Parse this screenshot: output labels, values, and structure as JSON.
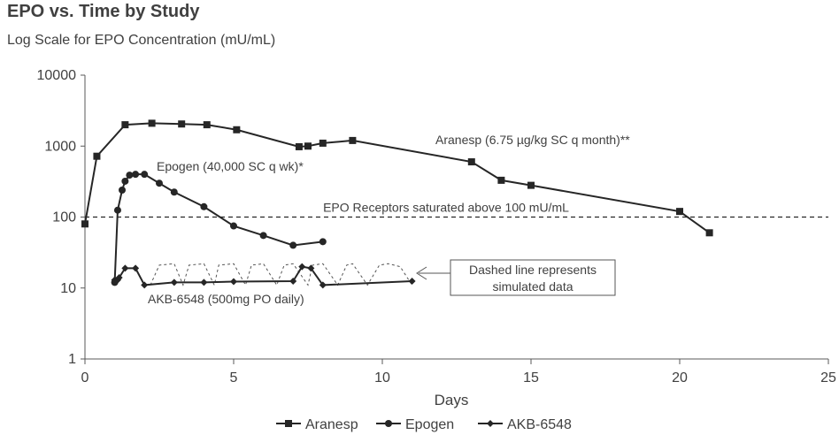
{
  "chart_data": {
    "type": "line",
    "title": "EPO vs. Time by Study",
    "subtitle": "Log Scale for EPO Concentration (mU/mL)",
    "xlabel": "Days",
    "ylabel": "",
    "x_scale": "linear",
    "y_scale": "log",
    "xlim": [
      0,
      25
    ],
    "ylim": [
      1,
      10000
    ],
    "x_ticks": [
      0,
      5,
      10,
      15,
      20,
      25
    ],
    "x_tick_labels": [
      "0",
      "5",
      "10",
      "15",
      "20",
      "25"
    ],
    "y_ticks": [
      1,
      10,
      100,
      1000,
      10000
    ],
    "y_tick_labels": [
      "1",
      "10",
      "100",
      "1000",
      "10000"
    ],
    "grid": false,
    "legend_position": "bottom",
    "series": [
      {
        "name": "Aranesp",
        "marker": "square",
        "x": [
          0,
          0.4,
          1.35,
          2.25,
          3.25,
          4.1,
          5.1,
          7.2,
          7.5,
          8,
          9,
          13,
          14,
          15,
          20,
          21
        ],
        "y": [
          80,
          720,
          2000,
          2100,
          2050,
          2000,
          1700,
          980,
          1000,
          1100,
          1200,
          600,
          330,
          280,
          120,
          60
        ]
      },
      {
        "name": "Epogen",
        "marker": "circle",
        "x": [
          1,
          1.1,
          1.25,
          1.35,
          1.5,
          1.7,
          2,
          2.5,
          3,
          4,
          5,
          6,
          7,
          8
        ],
        "y": [
          12,
          125,
          240,
          320,
          390,
          400,
          400,
          300,
          225,
          140,
          75,
          55,
          40,
          45
        ]
      },
      {
        "name": "AKB-6548",
        "marker": "diamond",
        "x": [
          1,
          1.05,
          1.1,
          1.15,
          1.35,
          1.7,
          2,
          3,
          4,
          5,
          7,
          7.3,
          7.6,
          8,
          11
        ],
        "y": [
          13,
          12.5,
          13,
          14,
          19,
          19,
          11,
          12,
          12,
          12.3,
          12.5,
          20,
          19,
          11,
          12.5
        ]
      }
    ],
    "simulated_dashed_line": {
      "x": [
        2.2,
        2.5,
        3,
        3.3,
        3.5,
        4,
        4.35,
        4.5,
        5,
        5.4,
        5.6,
        6,
        6.45,
        6.7,
        7,
        7.5,
        7.65,
        8,
        8.5,
        8.8,
        9,
        9.5,
        9.9,
        10.2,
        10.6,
        11
      ],
      "y": [
        11,
        21,
        22,
        11,
        21,
        22,
        11,
        21,
        22,
        11,
        21,
        22,
        11,
        21,
        22,
        11,
        21,
        22,
        11,
        21,
        22,
        11,
        21,
        22,
        20,
        11
      ]
    },
    "reference_line": {
      "y": 100,
      "label": "EPO Receptors saturated above 100 mU/mL"
    },
    "annotations": [
      {
        "text": "Aranesp (6.75 µg/kg SC q month)**",
        "x": 11.75,
        "y": 1200
      },
      {
        "text": "Epogen (40,000 SC q wk)*",
        "x": 2.4,
        "y": 600
      },
      {
        "text": "AKB-6548 (500mg PO daily)",
        "x": 2.1,
        "y": 7.3
      },
      {
        "text_lines": [
          "Dashed line represents",
          "simulated data"
        ],
        "boxed": true
      }
    ],
    "colors": {
      "line": "#262626",
      "text": "#404040",
      "axis": "#595959"
    }
  }
}
